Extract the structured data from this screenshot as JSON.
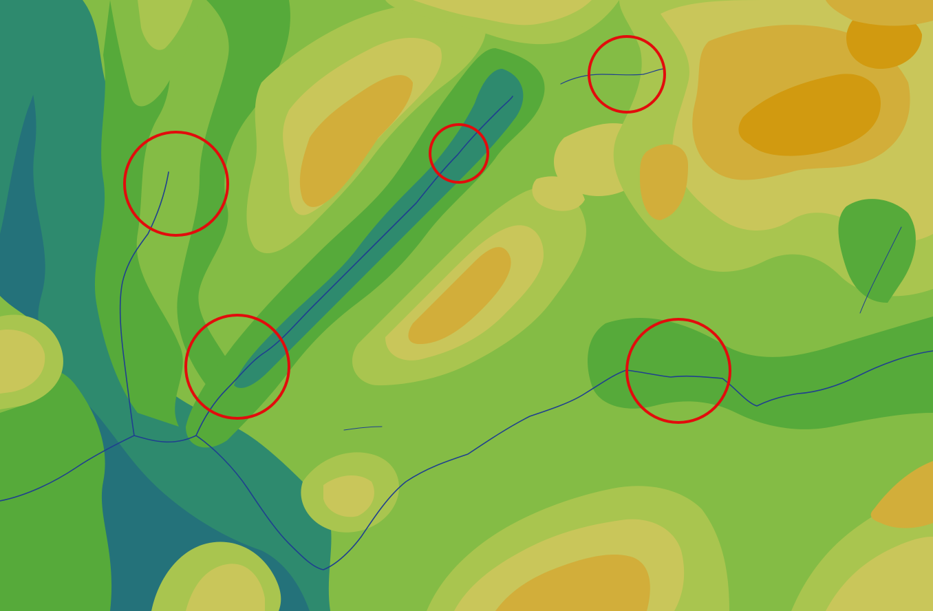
{
  "map": {
    "type": "elevation contour map with stream network",
    "palette": {
      "lowest": "#24727A",
      "low": "#2E8A6E",
      "low_mid": "#56AA3A",
      "mid": "#84BC45",
      "mid_high": "#A9C54F",
      "high": "#C9C65A",
      "higher": "#D2AE3A",
      "highest": "#D19A10",
      "stream": "#1F3F8F",
      "highlight_circle": "#E20C0C"
    },
    "highlights": [
      {
        "id": "circle-1",
        "label": ""
      },
      {
        "id": "circle-2",
        "label": ""
      },
      {
        "id": "circle-3",
        "label": ""
      },
      {
        "id": "circle-4",
        "label": ""
      },
      {
        "id": "circle-5",
        "label": ""
      }
    ]
  }
}
